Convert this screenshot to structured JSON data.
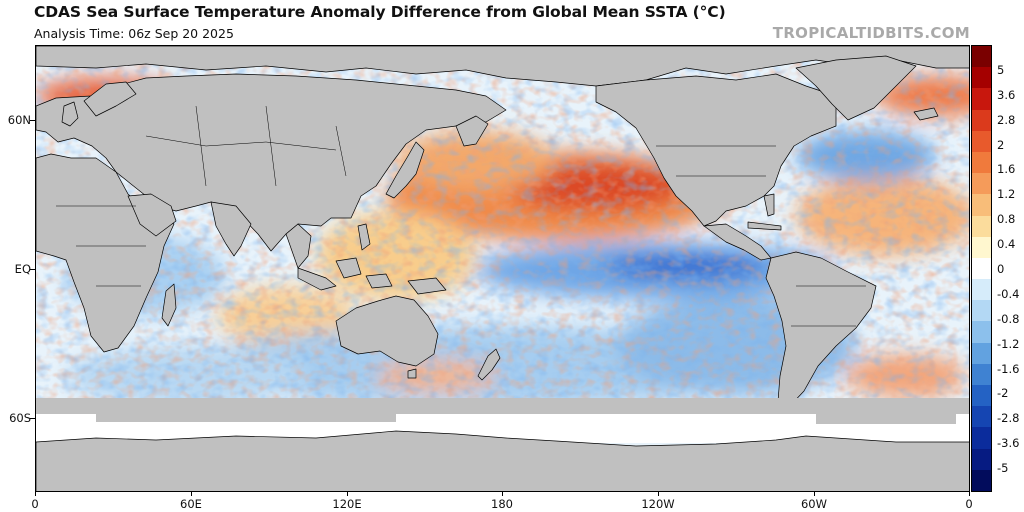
{
  "header": {
    "title": "CDAS Sea Surface Temperature Anomaly Difference from Global Mean SSTA (°C)",
    "analysis_time": "Analysis Time: 06z Sep 20 2025",
    "watermark": "TROPICALTIDBITS.COM"
  },
  "map": {
    "projection": "equirectangular",
    "land_color": "#c0c0c0",
    "coastline_color": "#000000",
    "lat_labels": [
      "60N",
      "EQ",
      "60S"
    ],
    "lon_labels": [
      "0",
      "60E",
      "120E",
      "180",
      "120W",
      "60W",
      "0"
    ]
  },
  "colorbar": {
    "labels": [
      "5",
      "3.6",
      "2.8",
      "2",
      "1.6",
      "1.2",
      "0.8",
      "0.4",
      "0",
      "-0.4",
      "-0.8",
      "-1.2",
      "-1.6",
      "-2",
      "-2.8",
      "-3.6",
      "-5"
    ],
    "colors": [
      "#7a0000",
      "#a50000",
      "#c8170d",
      "#db3a1c",
      "#e85a2c",
      "#f07a3c",
      "#f59b5a",
      "#f8bd79",
      "#fbdc9c",
      "#fff7cf",
      "#ffffff",
      "#d6ecfa",
      "#b3d8f4",
      "#8cc0ec",
      "#62a2e0",
      "#3f82d2",
      "#2462c4",
      "#1545b2",
      "#0b2c9c",
      "#061b82",
      "#020c5c"
    ]
  }
}
